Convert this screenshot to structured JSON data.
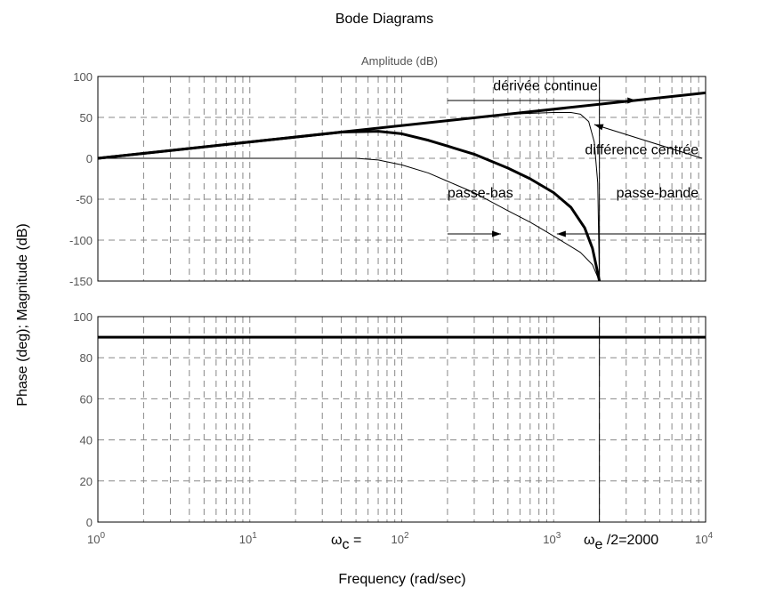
{
  "chart_data": {
    "type": "line",
    "title": "Bode Diagrams",
    "xlabel": "Frequency (rad/sec)",
    "ylabel": "Phase (deg); Magnitude (dB)",
    "xscale": "log",
    "xlim": [
      1,
      10000
    ],
    "x_tick_labels": [
      {
        "base": "10",
        "exp": "0",
        "value": 1
      },
      {
        "base": "10",
        "exp": "1",
        "value": 10
      },
      {
        "base": "10",
        "exp": "2",
        "value": 100
      },
      {
        "base": "10",
        "exp": "3",
        "value": 1000
      },
      {
        "base": "10",
        "exp": "4",
        "value": 10000
      }
    ],
    "grid": true,
    "vertical_marker": 2000,
    "panels": [
      {
        "subtitle": "Amplitude (dB)",
        "ylim": [
          -150,
          100
        ],
        "y_ticks": [
          100,
          50,
          0,
          -50,
          -100,
          -150
        ],
        "series": [
          {
            "style": "thick",
            "points": [
              [
                1,
                0
              ],
              [
                2,
                6
              ],
              [
                4,
                12
              ],
              [
                10,
                20
              ],
              [
                20,
                26
              ],
              [
                40,
                32
              ],
              [
                70,
                33
              ],
              [
                100,
                30
              ],
              [
                150,
                22
              ],
              [
                200,
                15
              ],
              [
                300,
                5
              ],
              [
                500,
                -12
              ],
              [
                700,
                -25
              ],
              [
                1000,
                -42
              ],
              [
                1300,
                -60
              ],
              [
                1600,
                -85
              ],
              [
                1800,
                -110
              ],
              [
                1950,
                -140
              ],
              [
                2000,
                -150
              ]
            ]
          },
          {
            "style": "thin",
            "points": [
              [
                1,
                0
              ],
              [
                20,
                0
              ],
              [
                50,
                0
              ],
              [
                70,
                -2
              ],
              [
                100,
                -8
              ],
              [
                150,
                -18
              ],
              [
                200,
                -28
              ],
              [
                300,
                -42
              ],
              [
                500,
                -64
              ],
              [
                700,
                -78
              ],
              [
                1000,
                -95
              ],
              [
                1500,
                -115
              ],
              [
                1800,
                -130
              ],
              [
                2000,
                -150
              ]
            ]
          },
          {
            "style": "thick",
            "points": [
              [
                1,
                0
              ],
              [
                10000,
                80
              ]
            ]
          },
          {
            "style": "thin",
            "points": [
              [
                1,
                0
              ],
              [
                10,
                20
              ],
              [
                100,
                40
              ],
              [
                500,
                54
              ],
              [
                1000,
                56
              ],
              [
                1300,
                56
              ],
              [
                1500,
                54
              ],
              [
                1700,
                45
              ],
              [
                1850,
                20
              ],
              [
                1950,
                -30
              ],
              [
                2000,
                -150
              ]
            ]
          }
        ],
        "annotations": [
          {
            "text": "dérivée continue",
            "x": 400,
            "y": 83,
            "target_x": 3500,
            "target_y": 71
          },
          {
            "text": "différence centrée",
            "x": 9000,
            "y": 5,
            "target_x": 1800,
            "target_y": 40
          },
          {
            "text": "passe-bas",
            "x": 200,
            "y": -48,
            "target_x": 450,
            "target_y": -63
          },
          {
            "text": "passe-bande",
            "x": 9000,
            "y": -48,
            "target_x": 1000,
            "target_y": -63
          }
        ]
      },
      {
        "ylim": [
          0,
          100
        ],
        "y_ticks": [
          100,
          80,
          60,
          40,
          20,
          0
        ],
        "series": [
          {
            "style": "thick",
            "points": [
              [
                1,
                90
              ],
              [
                10000,
                90
              ]
            ]
          }
        ]
      }
    ],
    "markers": {
      "wc_symbol": "ω",
      "wc_sub": "c",
      "wc_rest": " =",
      "we_symbol": "ω",
      "we_sub": "e",
      "we_rest": " /2=2000"
    }
  }
}
